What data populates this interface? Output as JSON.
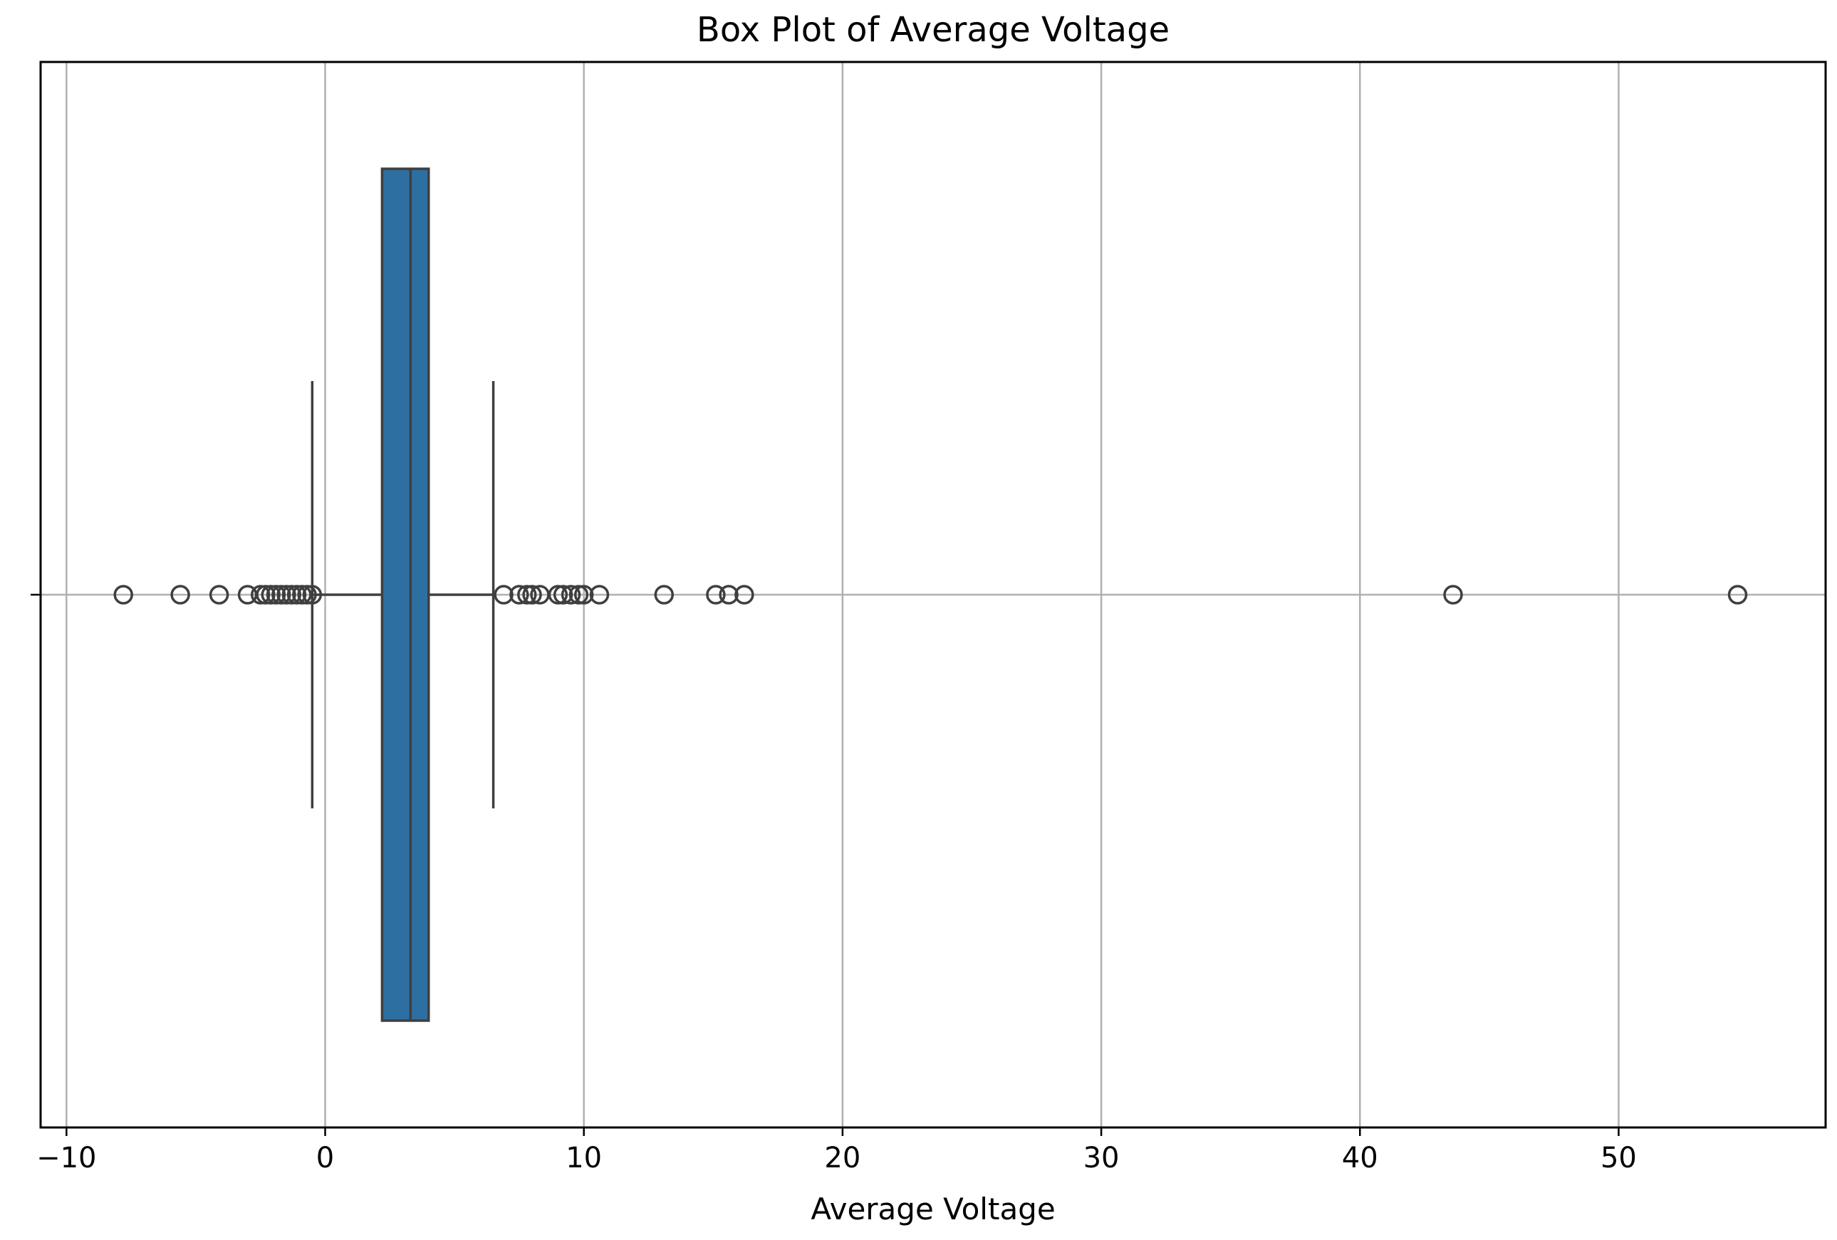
{
  "chart_data": {
    "type": "box",
    "orientation": "horizontal",
    "title": "Box Plot of Average Voltage",
    "xlabel": "Average Voltage",
    "ylabel": "",
    "xlim": [
      -11,
      58
    ],
    "xticks": [
      -10,
      0,
      10,
      20,
      30,
      40,
      50
    ],
    "xtick_labels": [
      "−10",
      "0",
      "10",
      "20",
      "30",
      "40",
      "50"
    ],
    "grid": true,
    "box": {
      "q1": 2.2,
      "median": 3.3,
      "q3": 4.0,
      "whisker_low": -0.5,
      "whisker_high": 6.5,
      "fill_color": "#2e6fa2",
      "line_color": "#3f3f3f"
    },
    "outliers": [
      -7.8,
      -5.6,
      -4.1,
      -3.0,
      -2.5,
      -2.3,
      -2.1,
      -1.9,
      -1.7,
      -1.5,
      -1.3,
      -1.1,
      -0.9,
      -0.7,
      -0.5,
      6.9,
      7.5,
      7.8,
      8.0,
      8.3,
      9.0,
      9.2,
      9.5,
      9.8,
      10.0,
      10.6,
      13.1,
      15.1,
      15.6,
      16.2,
      43.6,
      54.6
    ]
  }
}
